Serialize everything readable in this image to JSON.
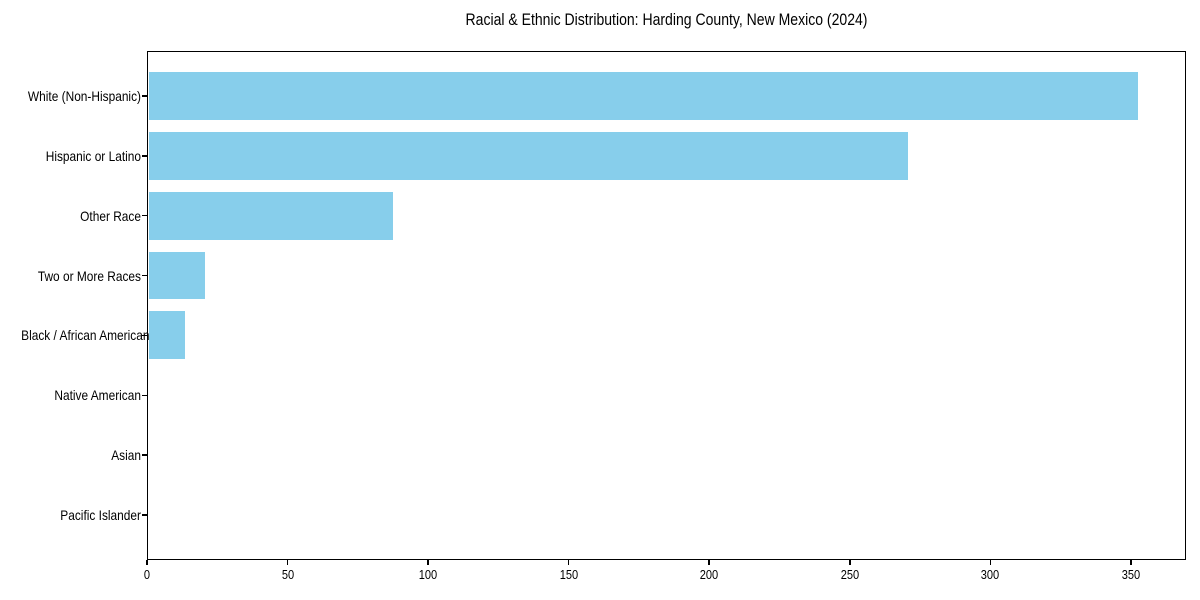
{
  "chart_data": {
    "type": "bar",
    "orientation": "horizontal",
    "title": "Racial & Ethnic Distribution: Harding County, New Mexico (2024)",
    "categories": [
      "White (Non-Hispanic)",
      "Hispanic or Latino",
      "Other Race",
      "Two or More Races",
      "Black / African American",
      "Native American",
      "Asian",
      "Pacific Islander"
    ],
    "values": [
      352,
      270,
      87,
      20,
      13,
      0,
      0,
      0
    ],
    "xlabel": "",
    "ylabel": "",
    "xlim": [
      0,
      369.6
    ],
    "x_ticks": [
      0,
      50,
      100,
      150,
      200,
      250,
      300,
      350
    ],
    "bar_color": "#87CEEB",
    "axis_color": "#000000",
    "text_color": "#000000",
    "background_color": "#ffffff",
    "grid": false,
    "legend": false,
    "bar_height_fraction": 0.8
  }
}
